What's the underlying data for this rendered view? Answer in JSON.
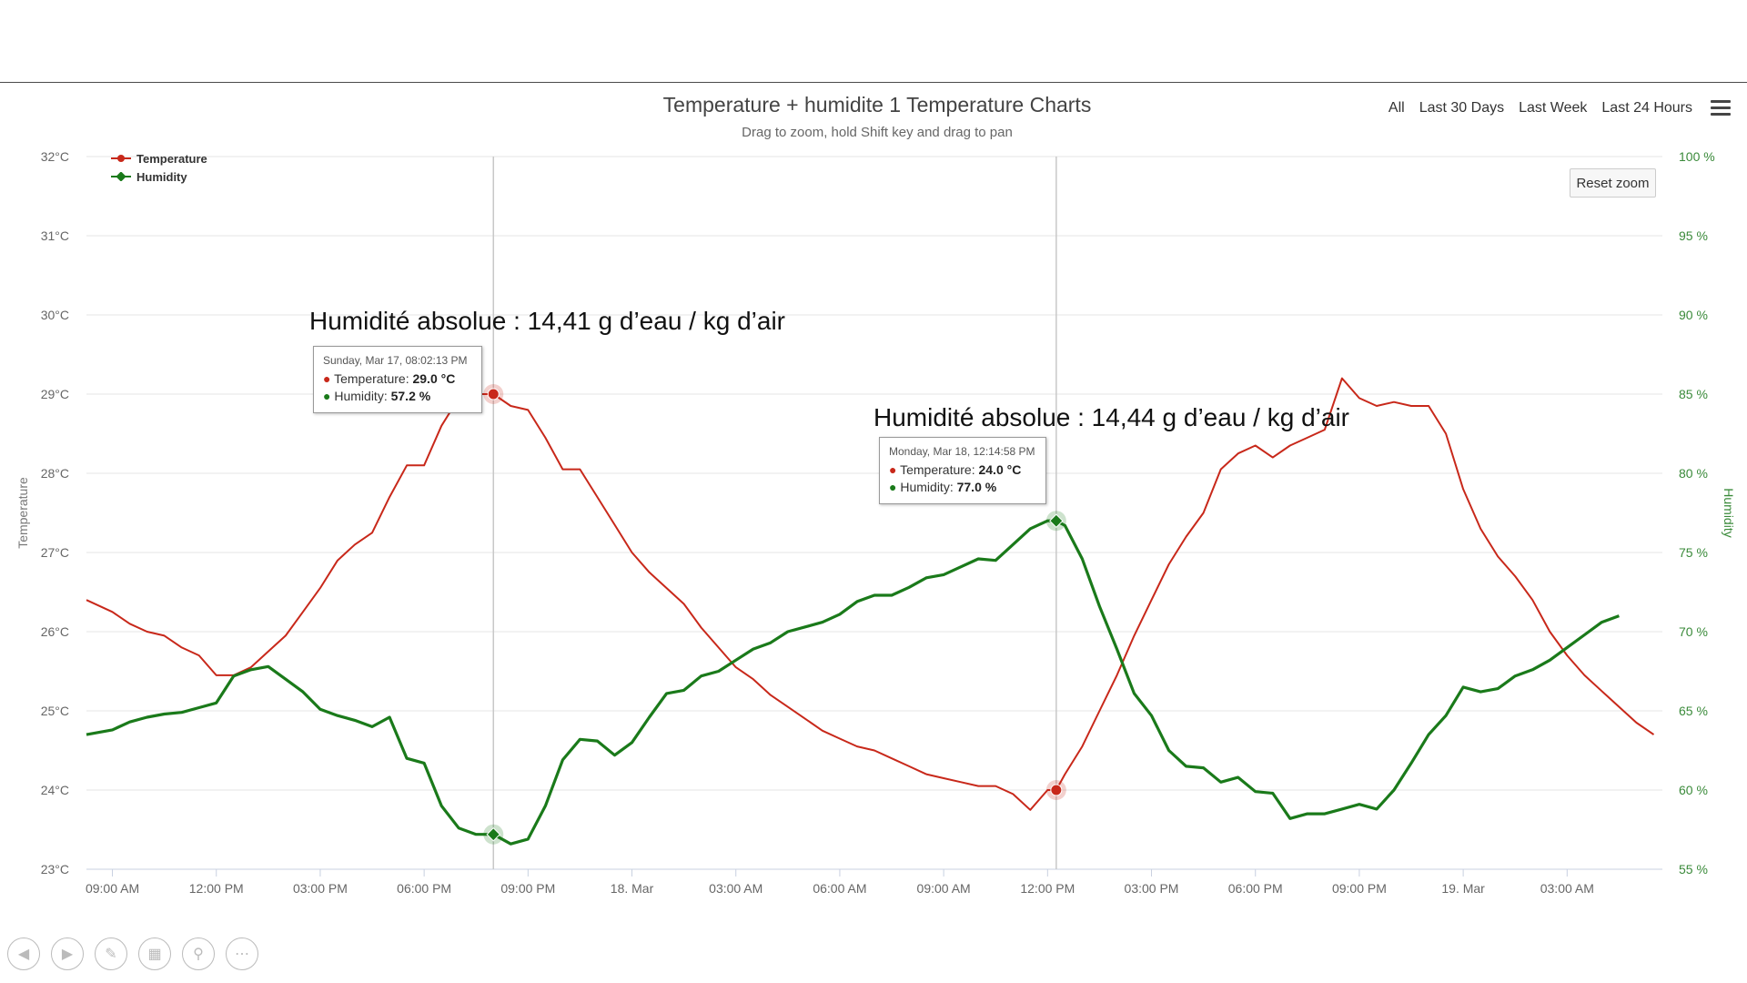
{
  "header": {
    "title": "Temperature + humidite 1 Temperature Charts",
    "subtitle": "Drag to zoom, hold Shift key and drag to pan",
    "range_buttons": [
      "All",
      "Last 30 Days",
      "Last Week",
      "Last 24 Hours"
    ],
    "reset_zoom": "Reset zoom"
  },
  "legend": {
    "temperature": "Temperature",
    "humidity": "Humidity"
  },
  "annotations": {
    "left": "Humidité absolue : 14,41 g d’eau / kg d’air",
    "right": "Humidité absolue : 14,44 g d’eau / kg d’air"
  },
  "tooltips": [
    {
      "date": "Sunday, Mar 17, 08:02:13 PM",
      "temp_label": "Temperature:",
      "temp_value": "29.0 °C",
      "hum_label": "Humidity:",
      "hum_value": "57.2 %"
    },
    {
      "date": "Monday, Mar 18, 12:14:58 PM",
      "temp_label": "Temperature:",
      "temp_value": "24.0 °C",
      "hum_label": "Humidity:",
      "hum_value": "77.0 %"
    }
  ],
  "colors": {
    "temperature": "#c8281a",
    "humidity": "#1a7a1a",
    "grid": "#e4e4e4",
    "axis_right": "#3a8a3a"
  },
  "chart_data": {
    "type": "line",
    "title": "Temperature + humidite 1 Temperature Charts",
    "subtitle": "Drag to zoom, hold Shift key and drag to pan",
    "x_unit": "hours since Mar 17 09:00 AM",
    "xlim": [
      -0.75,
      44.75
    ],
    "x_ticks": [
      {
        "x": 0,
        "label": "09:00 AM"
      },
      {
        "x": 3,
        "label": "12:00 PM"
      },
      {
        "x": 6,
        "label": "03:00 PM"
      },
      {
        "x": 9,
        "label": "06:00 PM"
      },
      {
        "x": 12,
        "label": "09:00 PM"
      },
      {
        "x": 15,
        "label": "18. Mar"
      },
      {
        "x": 18,
        "label": "03:00 AM"
      },
      {
        "x": 21,
        "label": "06:00 AM"
      },
      {
        "x": 24,
        "label": "09:00 AM"
      },
      {
        "x": 27,
        "label": "12:00 PM"
      },
      {
        "x": 30,
        "label": "03:00 PM"
      },
      {
        "x": 33,
        "label": "06:00 PM"
      },
      {
        "x": 36,
        "label": "09:00 PM"
      },
      {
        "x": 39,
        "label": "19. Mar"
      },
      {
        "x": 42,
        "label": "03:00 AM"
      }
    ],
    "left_axis": {
      "label": "Temperature",
      "range": [
        23,
        32
      ],
      "ticks": [
        "23°C",
        "24°C",
        "25°C",
        "26°C",
        "27°C",
        "28°C",
        "29°C",
        "30°C",
        "31°C",
        "32°C"
      ]
    },
    "right_axis": {
      "label": "Humidity",
      "range": [
        55,
        100
      ],
      "ticks": [
        "55 %",
        "60 %",
        "65 %",
        "70 %",
        "75 %",
        "80 %",
        "85 %",
        "90 %",
        "95 %",
        "100 %"
      ]
    },
    "crosshairs_x": [
      11.0,
      27.25
    ],
    "series": [
      {
        "name": "Temperature",
        "axis": "left",
        "points": [
          [
            -0.75,
            26.4
          ],
          [
            0,
            26.25
          ],
          [
            0.5,
            26.1
          ],
          [
            1,
            26.0
          ],
          [
            1.5,
            25.95
          ],
          [
            2,
            25.8
          ],
          [
            2.5,
            25.7
          ],
          [
            3,
            25.45
          ],
          [
            3.5,
            25.45
          ],
          [
            4,
            25.55
          ],
          [
            4.5,
            25.75
          ],
          [
            5,
            25.95
          ],
          [
            5.5,
            26.25
          ],
          [
            6,
            26.55
          ],
          [
            6.5,
            26.9
          ],
          [
            7,
            27.1
          ],
          [
            7.5,
            27.25
          ],
          [
            8,
            27.7
          ],
          [
            8.5,
            28.1
          ],
          [
            9,
            28.1
          ],
          [
            9.5,
            28.6
          ],
          [
            10,
            28.95
          ],
          [
            10.5,
            29.0
          ],
          [
            11,
            29.0
          ],
          [
            11.5,
            28.85
          ],
          [
            12,
            28.8
          ],
          [
            12.5,
            28.45
          ],
          [
            13,
            28.05
          ],
          [
            13.5,
            28.05
          ],
          [
            14,
            27.7
          ],
          [
            14.5,
            27.35
          ],
          [
            15,
            27.0
          ],
          [
            15.5,
            26.75
          ],
          [
            16,
            26.55
          ],
          [
            16.5,
            26.35
          ],
          [
            17,
            26.05
          ],
          [
            17.5,
            25.8
          ],
          [
            18,
            25.55
          ],
          [
            18.5,
            25.4
          ],
          [
            19,
            25.2
          ],
          [
            19.5,
            25.05
          ],
          [
            20,
            24.9
          ],
          [
            20.5,
            24.75
          ],
          [
            21,
            24.65
          ],
          [
            21.5,
            24.55
          ],
          [
            22,
            24.5
          ],
          [
            22.5,
            24.4
          ],
          [
            23,
            24.3
          ],
          [
            23.5,
            24.2
          ],
          [
            24,
            24.15
          ],
          [
            24.5,
            24.1
          ],
          [
            25,
            24.05
          ],
          [
            25.5,
            24.05
          ],
          [
            26,
            23.95
          ],
          [
            26.5,
            23.75
          ],
          [
            27,
            24.0
          ],
          [
            27.25,
            24.0
          ],
          [
            27.5,
            24.2
          ],
          [
            28,
            24.55
          ],
          [
            28.5,
            25.0
          ],
          [
            29,
            25.45
          ],
          [
            29.5,
            25.95
          ],
          [
            30,
            26.4
          ],
          [
            30.5,
            26.85
          ],
          [
            31,
            27.2
          ],
          [
            31.5,
            27.5
          ],
          [
            32,
            28.05
          ],
          [
            32.5,
            28.25
          ],
          [
            33,
            28.35
          ],
          [
            33.5,
            28.2
          ],
          [
            34,
            28.35
          ],
          [
            34.5,
            28.45
          ],
          [
            35,
            28.55
          ],
          [
            35.5,
            29.2
          ],
          [
            36,
            28.95
          ],
          [
            36.5,
            28.85
          ],
          [
            37,
            28.9
          ],
          [
            37.5,
            28.85
          ],
          [
            38,
            28.85
          ],
          [
            38.5,
            28.5
          ],
          [
            39,
            27.8
          ],
          [
            39.5,
            27.3
          ],
          [
            40,
            26.95
          ],
          [
            40.5,
            26.7
          ],
          [
            41,
            26.4
          ],
          [
            41.5,
            26.0
          ],
          [
            42,
            25.7
          ],
          [
            42.5,
            25.45
          ],
          [
            43,
            25.25
          ],
          [
            43.5,
            25.05
          ],
          [
            44,
            24.85
          ],
          [
            44.5,
            24.7
          ]
        ]
      },
      {
        "name": "Humidity",
        "axis": "right",
        "points": [
          [
            -0.75,
            63.5
          ],
          [
            0,
            63.8
          ],
          [
            0.5,
            64.3
          ],
          [
            1,
            64.6
          ],
          [
            1.5,
            64.8
          ],
          [
            2,
            64.9
          ],
          [
            2.5,
            65.2
          ],
          [
            3,
            65.5
          ],
          [
            3.5,
            67.2
          ],
          [
            4,
            67.6
          ],
          [
            4.5,
            67.8
          ],
          [
            5,
            67.0
          ],
          [
            5.5,
            66.2
          ],
          [
            6,
            65.1
          ],
          [
            6.5,
            64.7
          ],
          [
            7,
            64.4
          ],
          [
            7.5,
            64.0
          ],
          [
            8,
            64.6
          ],
          [
            8.5,
            62.0
          ],
          [
            9,
            61.7
          ],
          [
            9.5,
            59.0
          ],
          [
            10,
            57.6
          ],
          [
            10.5,
            57.2
          ],
          [
            11,
            57.2
          ],
          [
            11.5,
            56.6
          ],
          [
            12,
            56.9
          ],
          [
            12.5,
            59.0
          ],
          [
            13,
            61.9
          ],
          [
            13.5,
            63.2
          ],
          [
            14,
            63.1
          ],
          [
            14.5,
            62.2
          ],
          [
            15,
            63.0
          ],
          [
            15.5,
            64.6
          ],
          [
            16,
            66.1
          ],
          [
            16.5,
            66.3
          ],
          [
            17,
            67.2
          ],
          [
            17.5,
            67.5
          ],
          [
            18,
            68.2
          ],
          [
            18.5,
            68.9
          ],
          [
            19,
            69.3
          ],
          [
            19.5,
            70.0
          ],
          [
            20,
            70.3
          ],
          [
            20.5,
            70.6
          ],
          [
            21,
            71.1
          ],
          [
            21.5,
            71.9
          ],
          [
            22,
            72.3
          ],
          [
            22.5,
            72.3
          ],
          [
            23,
            72.8
          ],
          [
            23.5,
            73.4
          ],
          [
            24,
            73.6
          ],
          [
            24.5,
            74.1
          ],
          [
            25,
            74.6
          ],
          [
            25.5,
            74.5
          ],
          [
            26,
            75.5
          ],
          [
            26.5,
            76.5
          ],
          [
            27,
            77.0
          ],
          [
            27.25,
            77.0
          ],
          [
            27.5,
            76.7
          ],
          [
            28,
            74.6
          ],
          [
            28.5,
            71.6
          ],
          [
            29,
            68.9
          ],
          [
            29.5,
            66.1
          ],
          [
            30,
            64.7
          ],
          [
            30.5,
            62.5
          ],
          [
            31,
            61.5
          ],
          [
            31.5,
            61.4
          ],
          [
            32,
            60.5
          ],
          [
            32.5,
            60.8
          ],
          [
            33,
            59.9
          ],
          [
            33.5,
            59.8
          ],
          [
            34,
            58.2
          ],
          [
            34.5,
            58.5
          ],
          [
            35,
            58.5
          ],
          [
            35.5,
            58.8
          ],
          [
            36,
            59.1
          ],
          [
            36.5,
            58.8
          ],
          [
            37,
            60.0
          ],
          [
            37.5,
            61.7
          ],
          [
            38,
            63.5
          ],
          [
            38.5,
            64.7
          ],
          [
            39,
            66.5
          ],
          [
            39.5,
            66.2
          ],
          [
            40,
            66.4
          ],
          [
            40.5,
            67.2
          ],
          [
            41,
            67.6
          ],
          [
            41.5,
            68.2
          ],
          [
            42,
            69.0
          ],
          [
            42.5,
            69.8
          ],
          [
            43,
            70.6
          ],
          [
            43.5,
            71.0
          ]
        ]
      }
    ],
    "highlighted_points": [
      {
        "series": "Temperature",
        "x": 11.0,
        "y": 29.0
      },
      {
        "series": "Humidity",
        "x": 11.0,
        "y": 57.2
      },
      {
        "series": "Temperature",
        "x": 27.25,
        "y": 24.0
      },
      {
        "series": "Humidity",
        "x": 27.25,
        "y": 77.0
      }
    ]
  }
}
